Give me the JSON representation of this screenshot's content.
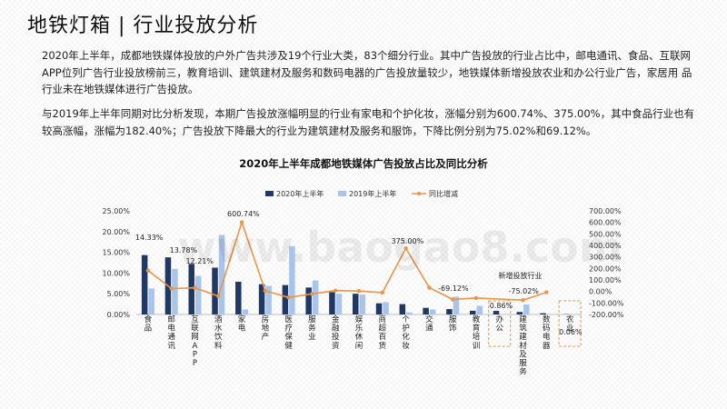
{
  "page": {
    "title": "地铁灯箱 | 行业投放分析",
    "paragraph1": "2020年上半年，成都地铁媒体投放的户外广告共涉及19个行业大类，83个细分行业。其中广告投放的行业占比中，邮电通讯、食品、互联网 APP位列广告行业投放榜前三，教育培训、建筑建材及服务和数码电器的广告投放量较少，地铁媒体新增投放农业和办公行业广告，家居用 品行业未在地铁媒体进行广告投放。",
    "paragraph2": "与2019年上半年同期对比分析发现，本期广告投放涨幅明显的行业有家电和个护化妆，涨幅分别为600.74%、375.00%，其中食品行业也有 较高涨幅，涨幅为182.40%；广告投放下降最大的行业为建筑建材及服务和服饰，下降比例分别为75.02%和69.12%。"
  },
  "chart_data": {
    "type": "bar",
    "title": "2020年上半年成都地铁媒体广告投放占比及同比分析",
    "categories": [
      "食品",
      "邮电通讯",
      "互联网APP",
      "酒水饮料",
      "家电",
      "房地产",
      "医疗保健",
      "服务业",
      "金融投资",
      "娱乐休闲",
      "商超百货",
      "个护化妆",
      "交通",
      "服饰",
      "教育培训",
      "办公",
      "建筑建材及服务",
      "数码电器",
      "农业"
    ],
    "boxed_categories": [
      "办公",
      "农业"
    ],
    "series": [
      {
        "name": "2020年上半年",
        "axis": "left",
        "color": "#1f3864",
        "values": [
          14.33,
          13.78,
          12.21,
          11.3,
          7.9,
          7.3,
          7.1,
          6.5,
          5.4,
          5.0,
          2.7,
          2.5,
          1.6,
          1.3,
          0.9,
          0.86,
          0.6,
          0.3,
          0.06
        ]
      },
      {
        "name": "2019年上半年",
        "axis": "left",
        "color": "#a9c4eb",
        "values": [
          6.3,
          11.0,
          9.3,
          19.2,
          1.2,
          6.9,
          16.5,
          8.2,
          5.0,
          4.8,
          3.0,
          0.5,
          1.2,
          4.3,
          2.1,
          0,
          2.4,
          0,
          0
        ]
      },
      {
        "name": "同比增减",
        "type": "line",
        "axis": "right",
        "color": "#e8944a",
        "values": [
          182.4,
          25.0,
          31.0,
          -41.0,
          600.74,
          6.0,
          -52.0,
          -21.0,
          8.0,
          4.0,
          -10.0,
          375.0,
          33.0,
          -69.12,
          -57.0,
          null,
          -75.02,
          -7.0,
          null
        ]
      }
    ],
    "data_labels": [
      {
        "index": 0,
        "text": "14.33%"
      },
      {
        "index": 1,
        "text": "13.78%"
      },
      {
        "index": 2,
        "text": "12.21%"
      },
      {
        "index": 4,
        "text": "600.74%"
      },
      {
        "index": 11,
        "text": "375.00%"
      },
      {
        "index": 13,
        "text": "-69.12%"
      },
      {
        "index": 15,
        "text": "0.86%"
      },
      {
        "index": 16,
        "text": "-75.02%"
      },
      {
        "index": 18,
        "text": "0.06%"
      }
    ],
    "annotations": [
      {
        "text": "新增投放行业"
      }
    ],
    "y_left": {
      "min": 0,
      "max": 25,
      "step": 5,
      "ticks": [
        "0.00%",
        "5.00%",
        "10.00%",
        "15.00%",
        "20.00%",
        "25.00%"
      ]
    },
    "y_right": {
      "min": -200,
      "max": 700,
      "step": 100,
      "ticks": [
        "-200.00%",
        "-100.00%",
        "0.00%",
        "100.00%",
        "200.00%",
        "300.00%",
        "400.00%",
        "500.00%",
        "600.00%",
        "700.00%"
      ]
    },
    "legend_position": "top",
    "grid": false
  },
  "watermark": "www.baogao8.com"
}
